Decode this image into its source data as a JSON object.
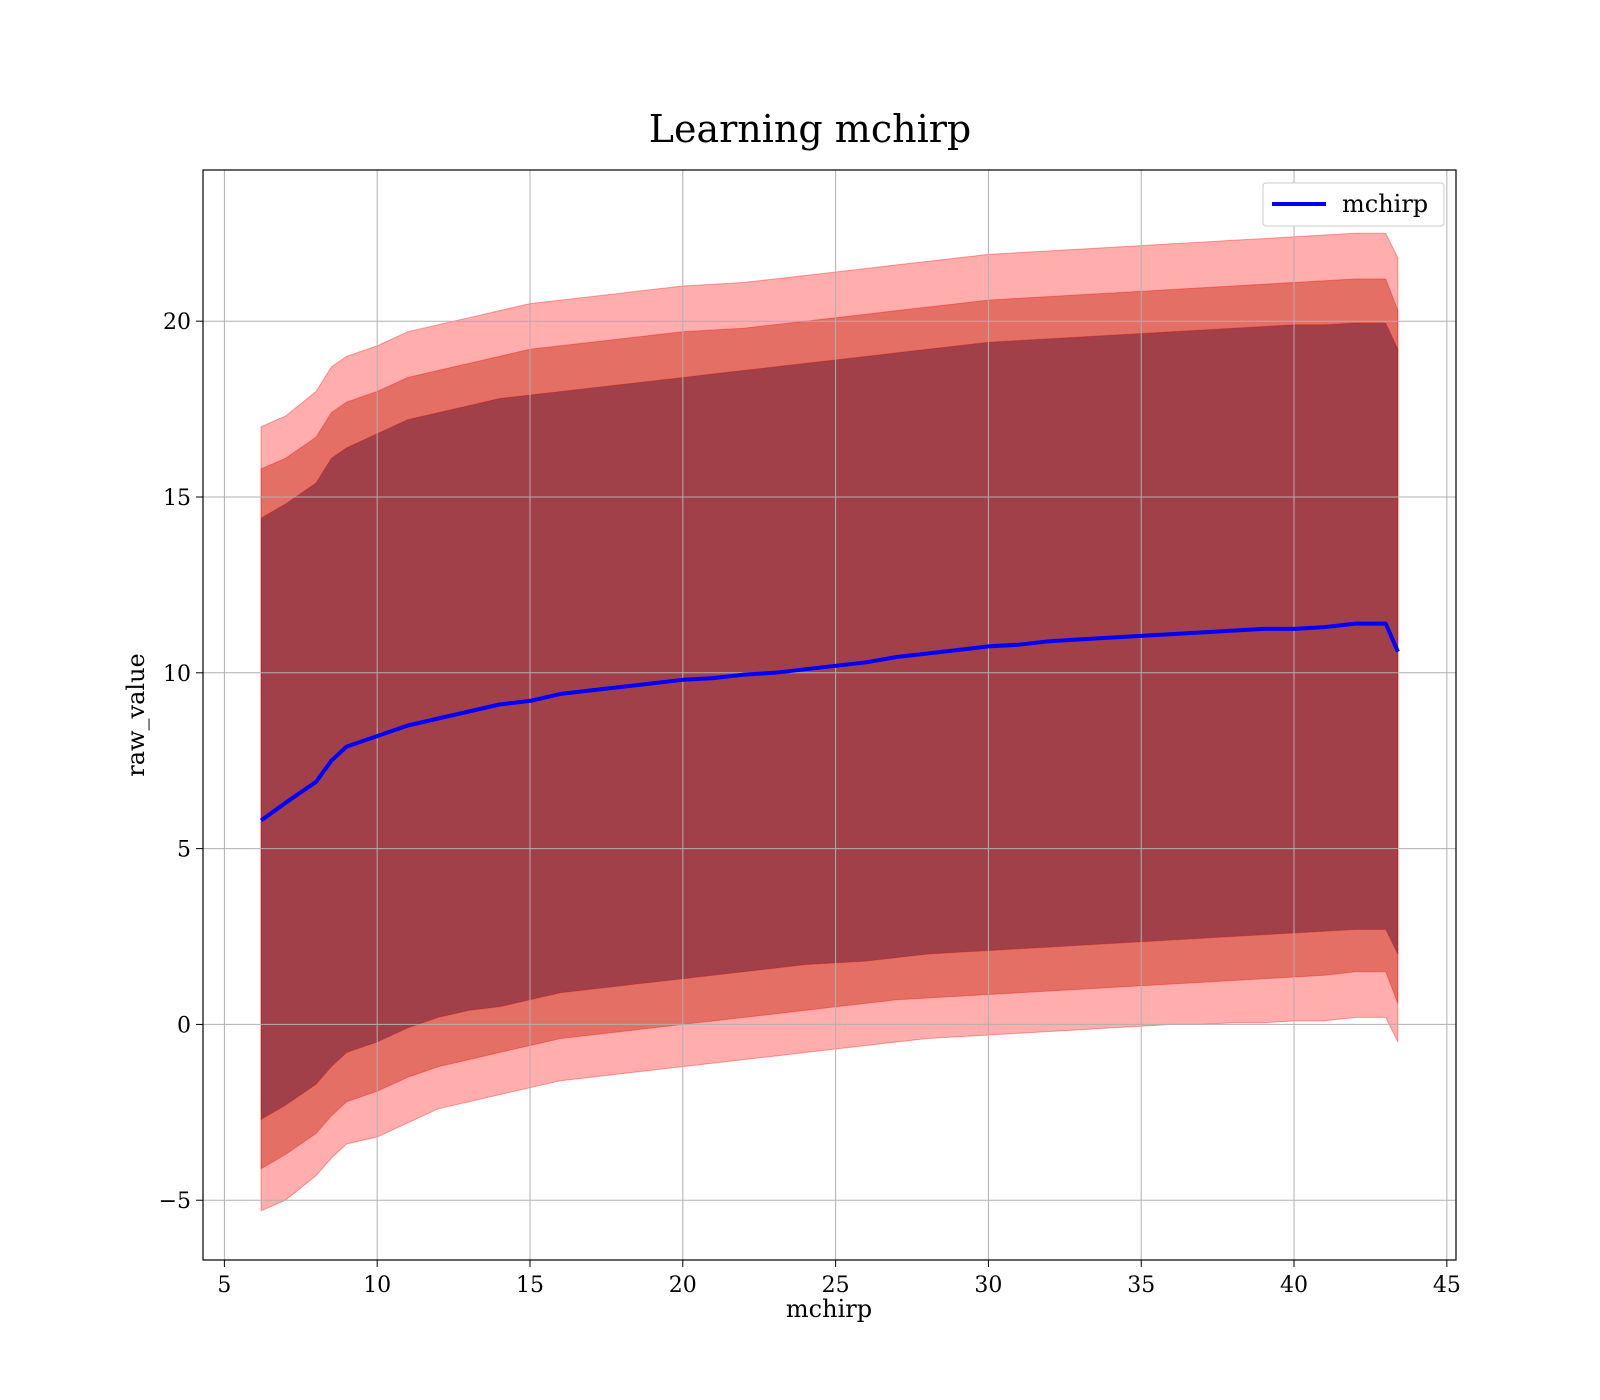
{
  "chart_data": {
    "type": "area",
    "title": "Learning mchirp",
    "xlabel": "mchirp",
    "ylabel": "raw_value",
    "xlim": [
      4.3,
      45.3
    ],
    "ylim": [
      -6.7,
      24.3
    ],
    "x_ticks": [
      5,
      10,
      15,
      20,
      25,
      30,
      35,
      40,
      45
    ],
    "y_ticks": [
      -5,
      0,
      5,
      10,
      15,
      20
    ],
    "grid": true,
    "legend": {
      "position": "top-right",
      "entries": [
        "mchirp"
      ]
    },
    "colors": {
      "line": "#0000ff",
      "band": "#ff0000",
      "grid": "#b0b0b0"
    },
    "x": [
      6.2,
      7,
      8,
      8.5,
      9,
      10,
      11,
      12,
      13,
      14,
      15,
      16,
      17,
      18,
      19,
      20,
      21,
      22,
      23,
      24,
      25,
      26,
      27,
      28,
      29,
      30,
      31,
      32,
      33,
      34,
      35,
      36,
      37,
      38,
      39,
      40,
      41,
      42,
      43,
      43.4
    ],
    "series": [
      {
        "name": "mchirp",
        "values": [
          5.8,
          6.3,
          6.9,
          7.5,
          7.9,
          8.2,
          8.5,
          8.7,
          8.9,
          9.1,
          9.2,
          9.4,
          9.5,
          9.6,
          9.7,
          9.8,
          9.85,
          9.95,
          10.0,
          10.1,
          10.2,
          10.3,
          10.45,
          10.55,
          10.65,
          10.75,
          10.8,
          10.9,
          10.95,
          11.0,
          11.05,
          11.1,
          11.15,
          11.2,
          11.25,
          11.25,
          11.3,
          11.4,
          11.4,
          10.6
        ]
      }
    ],
    "bands": [
      {
        "lower": [
          -5.3,
          -5.0,
          -4.3,
          -3.8,
          -3.4,
          -3.2,
          -2.8,
          -2.4,
          -2.2,
          -2.0,
          -1.8,
          -1.6,
          -1.5,
          -1.4,
          -1.3,
          -1.2,
          -1.1,
          -1.0,
          -0.9,
          -0.8,
          -0.7,
          -0.6,
          -0.5,
          -0.4,
          -0.35,
          -0.3,
          -0.25,
          -0.2,
          -0.15,
          -0.1,
          -0.05,
          0.0,
          0.0,
          0.05,
          0.05,
          0.1,
          0.1,
          0.2,
          0.2,
          -0.5
        ],
        "upper": [
          17.0,
          17.3,
          18.0,
          18.7,
          19.0,
          19.3,
          19.7,
          19.9,
          20.1,
          20.3,
          20.5,
          20.6,
          20.7,
          20.8,
          20.9,
          21.0,
          21.05,
          21.1,
          21.2,
          21.3,
          21.4,
          21.5,
          21.6,
          21.7,
          21.8,
          21.9,
          21.95,
          22.0,
          22.05,
          22.1,
          22.15,
          22.2,
          22.25,
          22.3,
          22.35,
          22.4,
          22.45,
          22.5,
          22.5,
          21.8
        ]
      },
      {
        "lower": [
          -4.1,
          -3.7,
          -3.1,
          -2.6,
          -2.2,
          -1.9,
          -1.5,
          -1.2,
          -1.0,
          -0.8,
          -0.6,
          -0.4,
          -0.3,
          -0.2,
          -0.1,
          0.0,
          0.1,
          0.2,
          0.3,
          0.4,
          0.5,
          0.6,
          0.7,
          0.75,
          0.8,
          0.85,
          0.9,
          0.95,
          1.0,
          1.05,
          1.1,
          1.15,
          1.2,
          1.25,
          1.3,
          1.35,
          1.4,
          1.5,
          1.5,
          0.6
        ],
        "upper": [
          15.8,
          16.1,
          16.7,
          17.4,
          17.7,
          18.0,
          18.4,
          18.6,
          18.8,
          19.0,
          19.2,
          19.3,
          19.4,
          19.5,
          19.6,
          19.7,
          19.75,
          19.8,
          19.9,
          20.0,
          20.1,
          20.2,
          20.3,
          20.4,
          20.5,
          20.6,
          20.65,
          20.7,
          20.75,
          20.8,
          20.85,
          20.9,
          20.95,
          21.0,
          21.05,
          21.1,
          21.15,
          21.2,
          21.2,
          20.3
        ]
      },
      {
        "lower": [
          -2.7,
          -2.3,
          -1.7,
          -1.2,
          -0.8,
          -0.5,
          -0.1,
          0.2,
          0.4,
          0.5,
          0.7,
          0.9,
          1.0,
          1.1,
          1.2,
          1.3,
          1.4,
          1.5,
          1.6,
          1.7,
          1.75,
          1.8,
          1.9,
          2.0,
          2.05,
          2.1,
          2.15,
          2.2,
          2.25,
          2.3,
          2.35,
          2.4,
          2.45,
          2.5,
          2.55,
          2.6,
          2.65,
          2.7,
          2.7,
          2.0
        ],
        "upper": [
          14.4,
          14.8,
          15.4,
          16.1,
          16.4,
          16.8,
          17.2,
          17.4,
          17.6,
          17.8,
          17.9,
          18.0,
          18.1,
          18.2,
          18.3,
          18.4,
          18.5,
          18.6,
          18.7,
          18.8,
          18.9,
          19.0,
          19.1,
          19.2,
          19.3,
          19.4,
          19.45,
          19.5,
          19.55,
          19.6,
          19.65,
          19.7,
          19.75,
          19.8,
          19.85,
          19.9,
          19.9,
          19.95,
          19.95,
          19.2
        ]
      }
    ]
  }
}
